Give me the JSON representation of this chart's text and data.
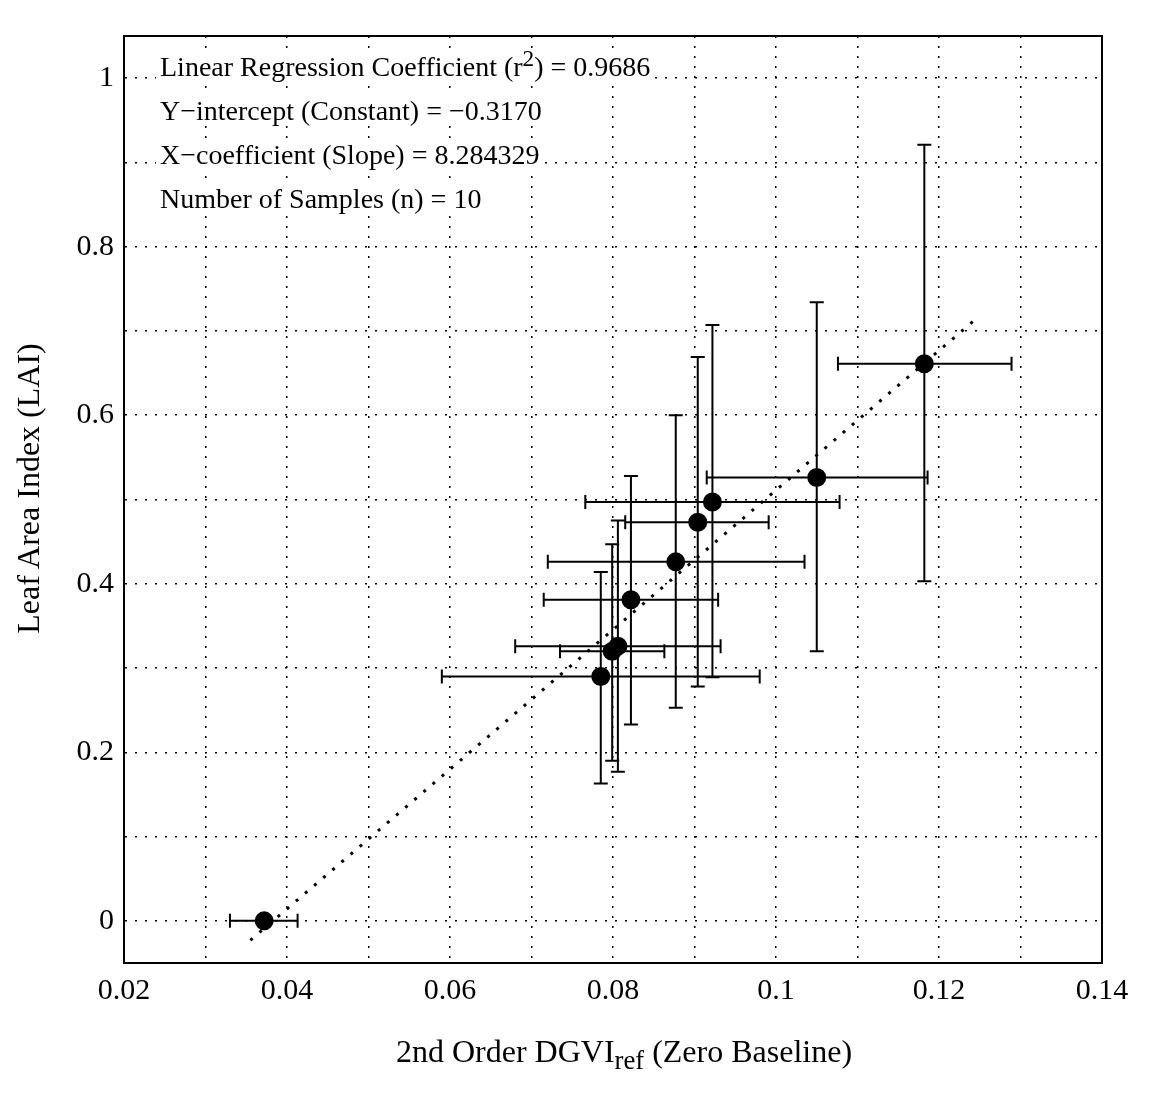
{
  "chart_data": {
    "type": "scatter",
    "xlabel": "2nd Order DGVI$_{ref}$ (Zero Baseline)",
    "ylabel": "Leaf Area Index (LAI)",
    "annotations": [
      "Linear Regression Coefficient (r$^{2}$) = 0.9686",
      "Y−intercept (Constant) = −0.3170",
      "X−coefficient (Slope) = 8.284329",
      "Number of Samples (n) = 10"
    ],
    "xlim": [
      0.02,
      0.14
    ],
    "ylim": [
      -0.05,
      1.05
    ],
    "xticks": [
      0.02,
      {
        "value": 0.03,
        "label": null
      },
      0.04,
      {
        "value": 0.05,
        "label": null
      },
      0.06,
      {
        "value": 0.07,
        "label": null
      },
      0.08,
      {
        "value": 0.09,
        "label": null
      },
      {
        "value": 0.1,
        "label": "0.1"
      },
      {
        "value": 0.11,
        "label": null
      },
      0.12,
      {
        "value": 0.13,
        "label": null
      },
      0.14
    ],
    "yticks": [
      0,
      {
        "value": 0.1,
        "label": null
      },
      0.2,
      {
        "value": 0.3,
        "label": null
      },
      0.4,
      {
        "value": 0.5,
        "label": null
      },
      0.6,
      {
        "value": 0.7,
        "label": null
      },
      0.8,
      {
        "value": 0.9,
        "label": null
      },
      1
    ],
    "grid": true,
    "legend": false,
    "marker": "circle",
    "series": [
      {
        "color": "#000000",
        "x": [
          0.0372,
          0.0785,
          0.0799,
          0.0806,
          0.0822,
          0.0877,
          0.0904,
          0.0922,
          0.105,
          0.1182
        ],
        "values": [
          0,
          0.29,
          0.32,
          0.326,
          0.381,
          0.426,
          0.473,
          0.497,
          0.526,
          0.661
        ],
        "errors": [
          null,
          [
            0.163,
            0.414
          ],
          [
            0.19,
            0.447
          ],
          [
            0.177,
            0.475
          ],
          [
            0.233,
            0.528
          ],
          [
            0.253,
            0.6
          ],
          [
            0.278,
            0.669
          ],
          [
            0.289,
            0.707
          ],
          [
            0.32,
            0.734
          ],
          [
            0.403,
            0.921
          ]
        ],
        "xerrors": [
          [
            0.033,
            0.0413
          ],
          [
            0.059,
            0.098
          ],
          [
            0.0735,
            0.0863
          ],
          [
            0.068,
            0.0932
          ],
          [
            0.0715,
            0.0929
          ],
          [
            0.072,
            0.1035
          ],
          [
            0.0815,
            0.0991
          ],
          [
            0.0766,
            0.1078
          ],
          [
            0.0915,
            0.1186
          ],
          [
            0.1076,
            0.1289
          ]
        ]
      },
      {
        "type": "line",
        "color": "#000000",
        "line_style": "dotted",
        "marker": "none",
        "x": [
          0.0355,
          0.1245
        ],
        "values": [
          -0.023,
          0.714
        ]
      }
    ]
  }
}
